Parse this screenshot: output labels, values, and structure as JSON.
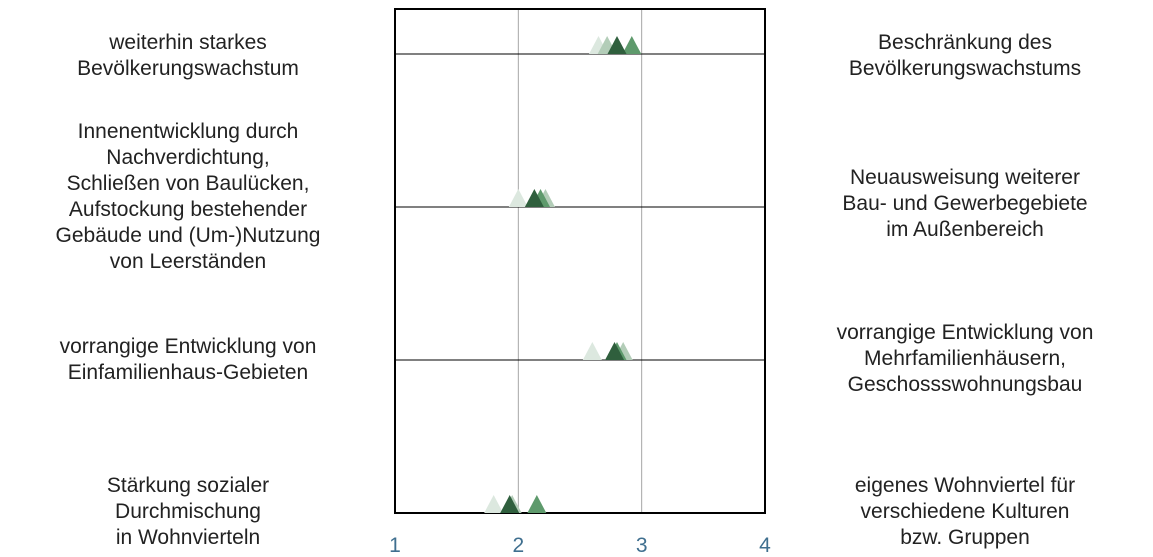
{
  "chart_data": {
    "type": "scatter",
    "xlim": [
      1,
      4
    ],
    "x_ticks": [
      "1",
      "2",
      "3",
      "4"
    ],
    "grid": true,
    "marker": "triangle",
    "series_colors": [
      "#dce8df",
      "#b3cdb8",
      "#5e9a6c",
      "#2f5f3d"
    ],
    "items": [
      {
        "left_label": "weiterhin starkes\nBevölkerungswachstum",
        "right_label": "Beschränkung des\nBevölkerungswachstums",
        "values": [
          2.65,
          2.72,
          2.92,
          2.8
        ]
      },
      {
        "left_label": "Innenentwicklung durch\nNachverdichtung,\nSchließen von Baulücken,\nAufstockung bestehender\nGebäude und (Um-)Nutzung\nvon Leerständen",
        "right_label": "Neuausweisung weiterer\nBau- und Gewerbegebiete\nim Außenbereich",
        "values": [
          2.0,
          2.22,
          2.18,
          2.13
        ]
      },
      {
        "left_label": "vorrangige Entwicklung von\nEinfamilienhaus-Gebieten",
        "right_label": "vorrangige Entwicklung von\nMehrfamilienhäusern,\nGeschossswohnungsbau",
        "values": [
          2.6,
          2.85,
          2.8,
          2.78
        ]
      },
      {
        "left_label": "Stärkung sozialer\nDurchmischung\nin Wohnvierteln",
        "right_label": "eigenes Wohnviertel für\nverschiedene Kulturen\nbzw. Gruppen",
        "values": [
          1.8,
          1.95,
          2.15,
          1.93
        ]
      }
    ]
  }
}
